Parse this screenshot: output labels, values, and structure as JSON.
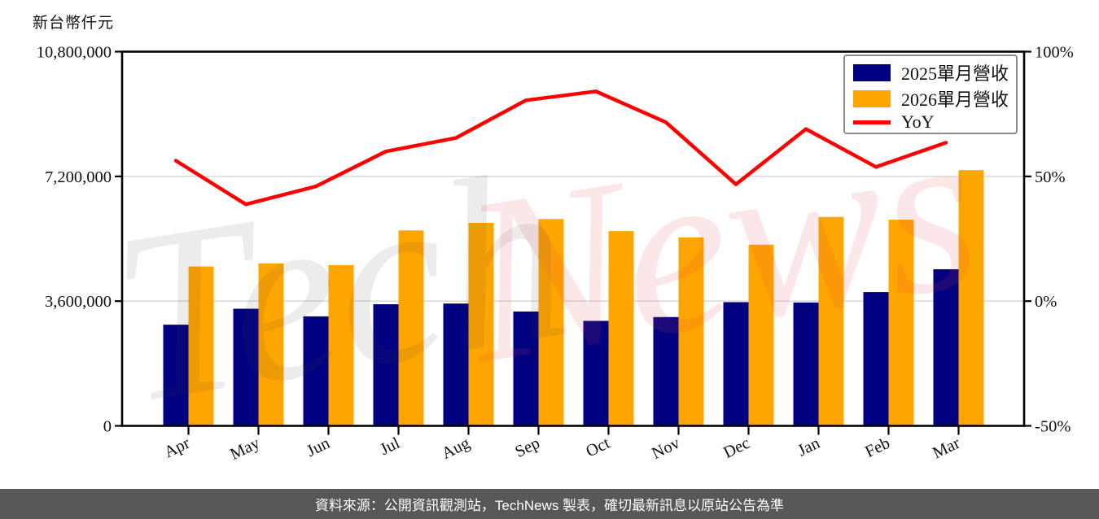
{
  "page": {
    "watermark_part1": "Tech",
    "watermark_part2": "News",
    "footer_text": "資料來源：公開資訊觀測站，TechNews 製表，確切最新訊息以原站公告為準"
  },
  "colors": {
    "bar_2025": "#000080",
    "bar_2026": "#FFA500",
    "yoy_line": "#FF0000",
    "gridline": "#DCDCDC",
    "axis": "#000000",
    "tick_text": "#111111",
    "footer_bg": "#58585A",
    "footer_text": "#FFFFFF",
    "watermark_gray": "rgba(70,70,70,0.10)",
    "watermark_pink": "rgba(225,70,70,0.13)"
  },
  "chart_data": {
    "type": "bar",
    "subtype": "grouped-bars-plus-line-dual-axis",
    "title": "",
    "categories": [
      "Apr",
      "May",
      "Jun",
      "Jul",
      "Aug",
      "Sep",
      "Oct",
      "Nov",
      "Dec",
      "Jan",
      "Feb",
      "Mar"
    ],
    "series": [
      {
        "name": "2025單月營收",
        "type": "bar",
        "axis": "left",
        "color": "#000080",
        "values": [
          2920000,
          3380000,
          3160000,
          3510000,
          3530000,
          3300000,
          3030000,
          3140000,
          3570000,
          3560000,
          3860000,
          4520000
        ]
      },
      {
        "name": "2026單月營收",
        "type": "bar",
        "axis": "left",
        "color": "#FFA500",
        "values": [
          4600000,
          4690000,
          4640000,
          5640000,
          5860000,
          5970000,
          5620000,
          5440000,
          5230000,
          6030000,
          5950000,
          7380000
        ]
      },
      {
        "name": "YoY",
        "type": "line",
        "axis": "right",
        "color": "#FF0000",
        "values": [
          56.3,
          38.8,
          46.0,
          60.0,
          65.4,
          80.5,
          84.1,
          71.7,
          46.8,
          69.0,
          53.8,
          63.5
        ]
      }
    ],
    "left_axis": {
      "unit_label": "新台幣仟元",
      "range": [
        0,
        10800000
      ],
      "ticks": [
        {
          "value": 0,
          "label": "0"
        },
        {
          "value": 3600000,
          "label": "3,600,000"
        },
        {
          "value": 7200000,
          "label": "7,200,000"
        },
        {
          "value": 10800000,
          "label": "10,800,000"
        }
      ]
    },
    "right_axis": {
      "unit": "%",
      "range": [
        -50,
        100
      ],
      "ticks": [
        {
          "value": -50,
          "label": "-50%"
        },
        {
          "value": 0,
          "label": "0%"
        },
        {
          "value": 50,
          "label": "50%"
        },
        {
          "value": 100,
          "label": "100%"
        }
      ]
    },
    "legend": {
      "position": "top-right",
      "entries": [
        "2025單月營收",
        "2026單月營收",
        "YoY"
      ]
    },
    "grid": "horizontal"
  }
}
